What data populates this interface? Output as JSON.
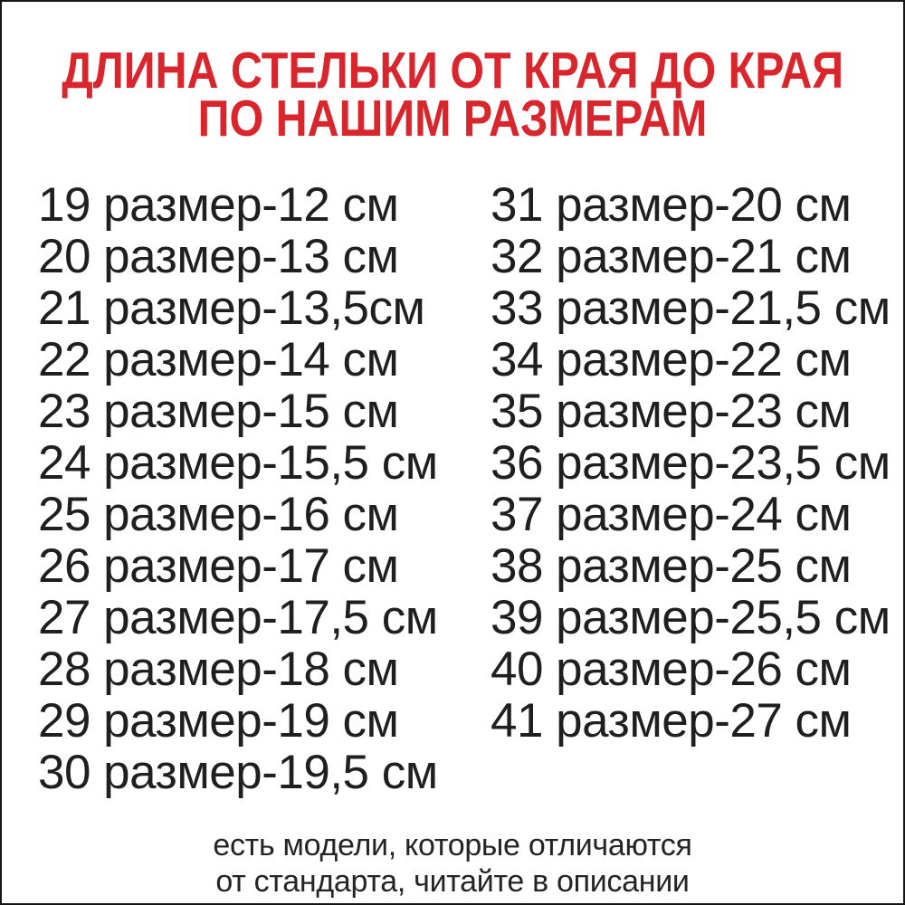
{
  "title": {
    "line1": "ДЛИНА СТЕЛЬКИ ОТ КРАЯ ДО КРАЯ",
    "line2": "ПО НАШИМ РАЗМЕРАМ"
  },
  "table": {
    "left": [
      "19 размер-12 см",
      "20 размер-13 см",
      "21 размер-13,5см",
      "22 размер-14 см",
      "23 размер-15 см",
      "24 размер-15,5 см",
      "25 размер-16 см",
      "26 размер-17 см",
      "27 размер-17,5 см",
      "28 размер-18 см",
      "29 размер-19 см",
      "30 размер-19,5 см"
    ],
    "right": [
      "31 размер-20 см",
      "32 размер-21 см",
      "33 размер-21,5 см",
      "34 размер-22 см",
      "35 размер-23 см",
      "36 размер-23,5 см",
      "37 размер-24 см",
      "38 размер-25 см",
      "39 размер-25,5 см",
      "40 размер-26 см",
      "41 размер-27 см"
    ]
  },
  "footnote": {
    "line1": "есть модели, которые отличаются",
    "line2": "от стандарта, читайте в описании"
  },
  "colors": {
    "title_red": "#d8262c",
    "text": "#1f1f1f",
    "background": "#ffffff",
    "border": "#161616"
  }
}
